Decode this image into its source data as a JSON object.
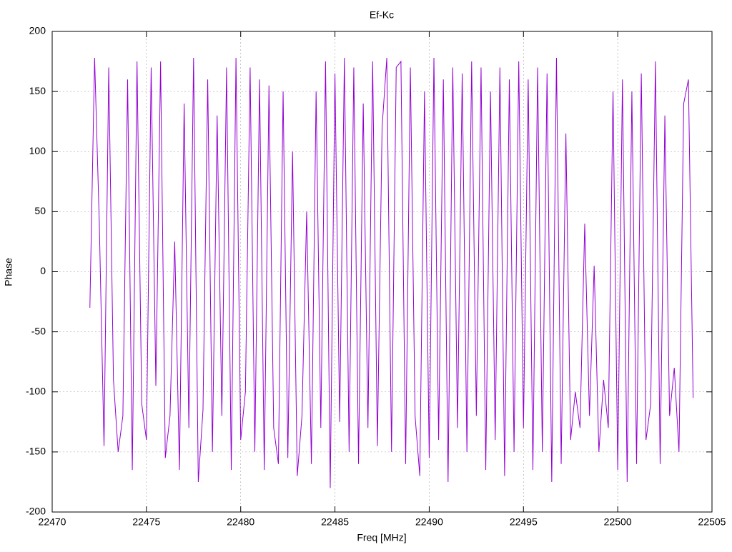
{
  "chart_data": {
    "type": "line",
    "title": "Ef-Kc",
    "xlabel": "Freq [MHz]",
    "ylabel": "Phase",
    "xlim": [
      22470,
      22505
    ],
    "xticks": [
      22470,
      22475,
      22480,
      22485,
      22490,
      22495,
      22500,
      22505
    ],
    "ylim": [
      -200,
      200
    ],
    "yticks": [
      -200,
      -150,
      -100,
      -50,
      0,
      50,
      100,
      150,
      200
    ],
    "grid": true,
    "x": [
      22472,
      22472.25,
      22472.5,
      22472.75,
      22473,
      22473.25,
      22473.5,
      22473.75,
      22474,
      22474.25,
      22474.5,
      22474.75,
      22475,
      22475.25,
      22475.5,
      22475.75,
      22476,
      22476.25,
      22476.5,
      22476.75,
      22477,
      22477.25,
      22477.5,
      22477.75,
      22478,
      22478.25,
      22478.5,
      22478.75,
      22479,
      22479.25,
      22479.5,
      22479.75,
      22480,
      22480.25,
      22480.5,
      22480.75,
      22481,
      22481.25,
      22481.5,
      22481.75,
      22482,
      22482.25,
      22482.5,
      22482.75,
      22483,
      22483.25,
      22483.5,
      22483.75,
      22484,
      22484.25,
      22484.5,
      22484.75,
      22485,
      22485.25,
      22485.5,
      22485.75,
      22486,
      22486.25,
      22486.5,
      22486.75,
      22487,
      22487.25,
      22487.5,
      22487.75,
      22488,
      22488.25,
      22488.5,
      22488.75,
      22489,
      22489.25,
      22489.5,
      22489.75,
      22490,
      22490.25,
      22490.5,
      22490.75,
      22491,
      22491.25,
      22491.5,
      22491.75,
      22492,
      22492.25,
      22492.5,
      22492.75,
      22493,
      22493.25,
      22493.5,
      22493.75,
      22494,
      22494.25,
      22494.5,
      22494.75,
      22495,
      22495.25,
      22495.5,
      22495.75,
      22496,
      22496.25,
      22496.5,
      22496.75,
      22497,
      22497.25,
      22497.5,
      22497.75,
      22498,
      22498.25,
      22498.5,
      22498.75,
      22499,
      22499.25,
      22499.5,
      22499.75,
      22500,
      22500.25,
      22500.5,
      22500.75,
      22501,
      22501.25,
      22501.5,
      22501.75,
      22502,
      22502.25,
      22502.5,
      22502.75,
      22503,
      22503.25,
      22503.5,
      22503.75,
      22504
    ],
    "series": [
      {
        "color": "#9400d3",
        "values": [
          -30,
          178,
          40,
          -145,
          170,
          -90,
          -150,
          -120,
          160,
          -165,
          175,
          -110,
          -140,
          170,
          -95,
          175,
          -155,
          -120,
          25,
          -165,
          140,
          -130,
          178,
          -175,
          -115,
          160,
          -150,
          130,
          -120,
          170,
          -165,
          178,
          -140,
          -100,
          170,
          -150,
          160,
          -165,
          155,
          -130,
          -160,
          150,
          -155,
          100,
          -170,
          -120,
          50,
          -160,
          150,
          -130,
          175,
          -180,
          165,
          -125,
          178,
          -150,
          170,
          -160,
          140,
          -130,
          175,
          -145,
          120,
          178,
          -150,
          170,
          175,
          -160,
          170,
          -120,
          -170,
          150,
          -155,
          178,
          -140,
          160,
          -175,
          170,
          -130,
          165,
          -150,
          175,
          -120,
          170,
          -165,
          150,
          -140,
          170,
          -170,
          160,
          -150,
          175,
          -130,
          160,
          -165,
          170,
          -150,
          165,
          -175,
          178,
          -160,
          115,
          -140,
          -100,
          -130,
          40,
          -120,
          5,
          -150,
          -90,
          -130,
          150,
          -165,
          160,
          -175,
          150,
          -160,
          165,
          -140,
          -110,
          175,
          -160,
          130,
          -120,
          -80,
          -150,
          140,
          160,
          -105
        ]
      }
    ]
  }
}
